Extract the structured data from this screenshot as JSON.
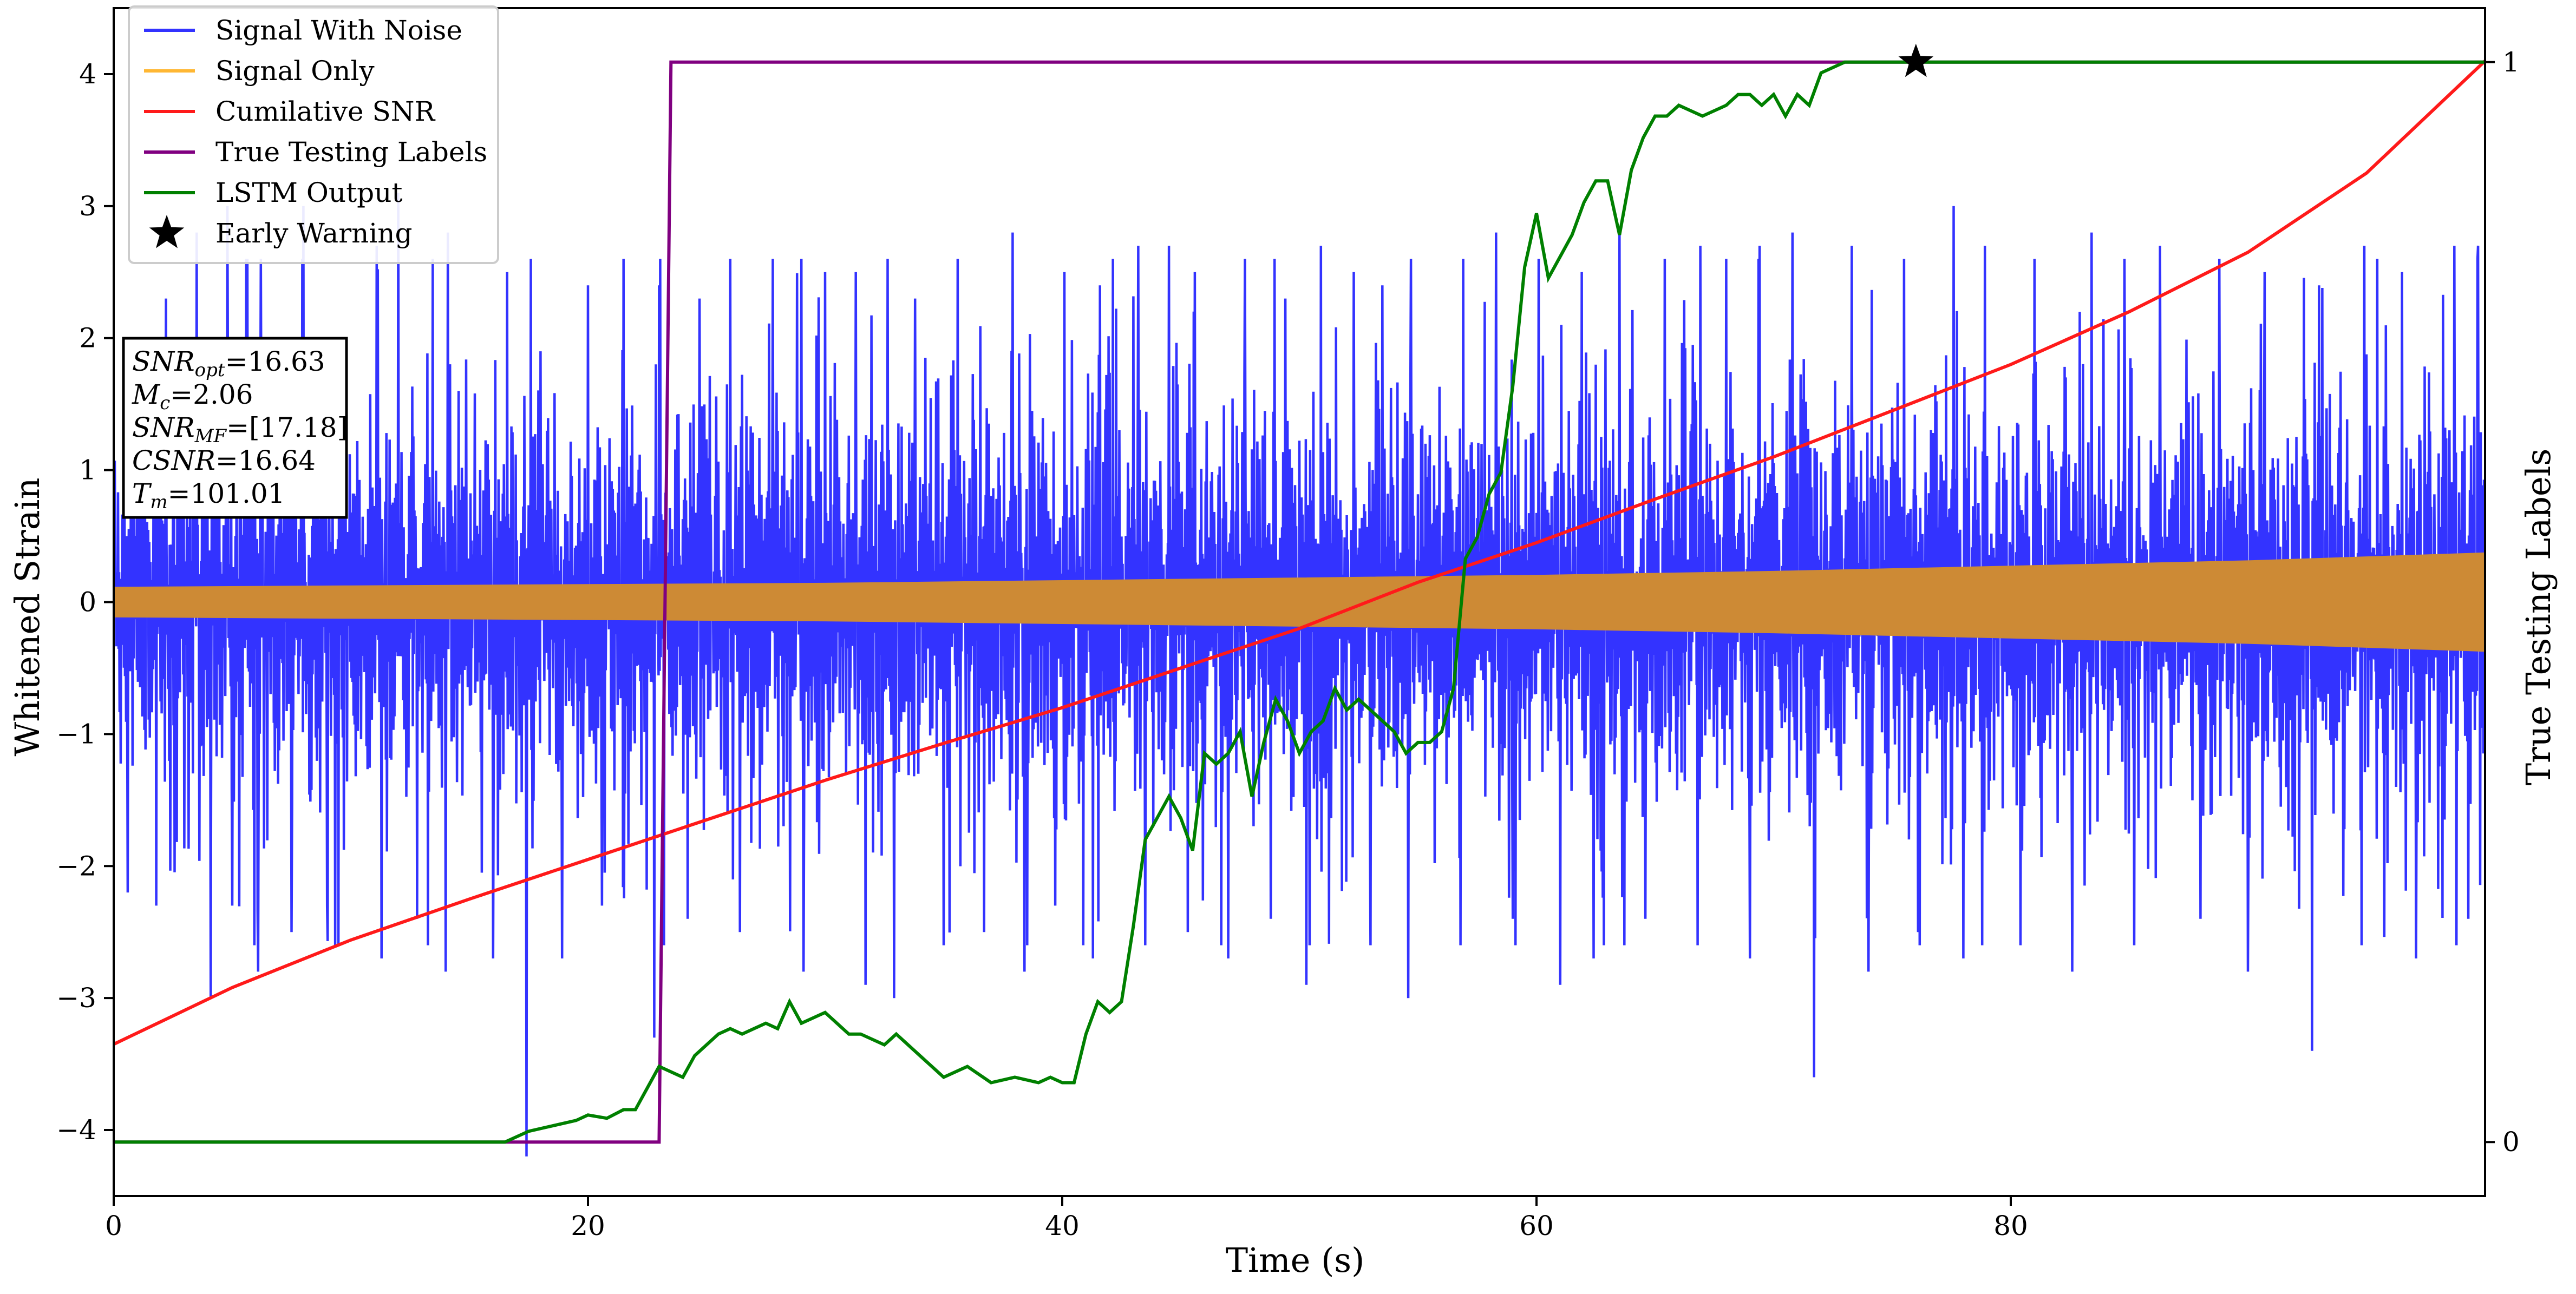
{
  "chart_data": {
    "type": "line",
    "title": "",
    "xlabel": "Time (s)",
    "ylabel": "Whitened Strain",
    "ylabel_right": "True Testing Labels",
    "xlim": [
      0,
      100
    ],
    "ylim": [
      -4.5,
      4.5
    ],
    "ylim_right": [
      -0.05,
      1.05
    ],
    "x_ticks": [
      0,
      20,
      40,
      60,
      80
    ],
    "y_ticks": [
      -4,
      -3,
      -2,
      -1,
      0,
      1,
      2,
      3,
      4
    ],
    "y_tick_labels": [
      "−4",
      "−3",
      "−2",
      "−1",
      "0",
      "1",
      "2",
      "3",
      "4"
    ],
    "y_right_ticks": [
      0,
      1
    ],
    "grid": false,
    "legend_position": "top-left",
    "legend": [
      {
        "label": "Signal With Noise",
        "color": "#3333ff",
        "marker": "line"
      },
      {
        "label": "Signal Only",
        "color": "#ffb733",
        "marker": "line"
      },
      {
        "label": "Cumilative SNR",
        "color": "#ff1a1a",
        "marker": "line"
      },
      {
        "label": "True Testing Labels",
        "color": "#800080",
        "marker": "line"
      },
      {
        "label": "LSTM Output",
        "color": "#008000",
        "marker": "line"
      },
      {
        "label": "Early Warning",
        "color": "#000000",
        "marker": "star"
      }
    ],
    "info_box": [
      {
        "main": "SNR",
        "sub": "opt",
        "value": "=16.63"
      },
      {
        "main": "M",
        "sub": "c",
        "value": "=2.06"
      },
      {
        "main": "SNR",
        "sub": "MF",
        "value": "=[17.18]"
      },
      {
        "main": "CSNR",
        "sub": "",
        "value": "=16.64"
      },
      {
        "main": "T",
        "sub": "m",
        "value": "=101.01"
      }
    ],
    "series": {
      "signal_with_noise": {
        "name": "Signal With Noise",
        "color": "#3333ff",
        "axis": "left",
        "description_mean": 0,
        "band_core": [
          -1.0,
          1.0
        ],
        "spikes_pos": [
          [
            1.0,
            1.9
          ],
          [
            2.2,
            2.3
          ],
          [
            3.5,
            2.8
          ],
          [
            4.8,
            3.0
          ],
          [
            6.2,
            2.6
          ],
          [
            8.0,
            3.0
          ],
          [
            11.1,
            2.7
          ],
          [
            12.0,
            3.1
          ],
          [
            14.1,
            2.8
          ],
          [
            16.6,
            2.5
          ],
          [
            17.6,
            2.6
          ],
          [
            18.0,
            1.9
          ],
          [
            20.0,
            2.4
          ],
          [
            21.5,
            2.6
          ],
          [
            23.0,
            2.4
          ],
          [
            24.7,
            2.3
          ],
          [
            26.0,
            2.6
          ],
          [
            27.8,
            2.6
          ],
          [
            30.0,
            2.5
          ],
          [
            31.3,
            2.5
          ],
          [
            33.8,
            2.3
          ],
          [
            35.6,
            2.6
          ],
          [
            37.9,
            2.8
          ],
          [
            40.1,
            2.5
          ],
          [
            41.6,
            2.4
          ],
          [
            43.2,
            2.7
          ],
          [
            44.5,
            2.7
          ],
          [
            45.6,
            2.5
          ],
          [
            47.7,
            2.6
          ],
          [
            49.4,
            2.3
          ],
          [
            50.9,
            2.7
          ],
          [
            52.3,
            2.5
          ],
          [
            53.5,
            2.4
          ],
          [
            54.7,
            2.6
          ],
          [
            56.9,
            2.6
          ],
          [
            58.3,
            2.8
          ],
          [
            60.1,
            2.6
          ],
          [
            61.9,
            2.5
          ],
          [
            63.5,
            2.8
          ],
          [
            65.4,
            2.6
          ],
          [
            66.9,
            2.7
          ],
          [
            68.0,
            2.6
          ],
          [
            69.4,
            2.7
          ],
          [
            70.8,
            2.8
          ],
          [
            73.3,
            2.7
          ],
          [
            75.5,
            2.6
          ],
          [
            77.6,
            3.0
          ],
          [
            78.9,
            2.7
          ],
          [
            81.0,
            2.6
          ],
          [
            83.4,
            2.8
          ],
          [
            84.8,
            2.6
          ],
          [
            86.3,
            2.7
          ],
          [
            88.8,
            2.6
          ],
          [
            90.7,
            2.5
          ],
          [
            93.0,
            2.4
          ],
          [
            94.9,
            2.7
          ],
          [
            96.5,
            2.5
          ],
          [
            98.7,
            2.7
          ],
          [
            99.7,
            2.7
          ]
        ],
        "spikes_neg": [
          [
            0.6,
            -2.2
          ],
          [
            1.8,
            -2.3
          ],
          [
            4.1,
            -3.0
          ],
          [
            5.0,
            -2.3
          ],
          [
            6.1,
            -2.8
          ],
          [
            7.5,
            -2.5
          ],
          [
            9.0,
            -2.3
          ],
          [
            11.3,
            -2.7
          ],
          [
            12.8,
            -2.4
          ],
          [
            14.0,
            -2.8
          ],
          [
            16.0,
            -2.7
          ],
          [
            17.4,
            -4.2
          ],
          [
            18.9,
            -2.7
          ],
          [
            20.6,
            -2.3
          ],
          [
            22.8,
            -3.3
          ],
          [
            24.2,
            -2.4
          ],
          [
            26.4,
            -2.5
          ],
          [
            29.1,
            -2.8
          ],
          [
            31.7,
            -2.9
          ],
          [
            32.9,
            -3.0
          ],
          [
            35.0,
            -2.6
          ],
          [
            36.7,
            -2.5
          ],
          [
            38.4,
            -2.8
          ],
          [
            39.7,
            -2.3
          ],
          [
            41.3,
            -2.7
          ],
          [
            43.5,
            -2.6
          ],
          [
            45.3,
            -2.5
          ],
          [
            47.0,
            -2.7
          ],
          [
            48.8,
            -2.4
          ],
          [
            50.3,
            -2.9
          ],
          [
            53.0,
            -2.6
          ],
          [
            54.6,
            -3.0
          ],
          [
            56.8,
            -2.6
          ],
          [
            59.0,
            -2.4
          ],
          [
            61.0,
            -2.9
          ],
          [
            62.4,
            -2.7
          ],
          [
            64.6,
            -2.4
          ],
          [
            66.8,
            -2.6
          ],
          [
            69.0,
            -2.7
          ],
          [
            71.7,
            -3.6
          ],
          [
            74.0,
            -2.8
          ],
          [
            76.1,
            -2.5
          ],
          [
            78.0,
            -2.7
          ],
          [
            80.4,
            -2.6
          ],
          [
            82.6,
            -2.8
          ],
          [
            85.2,
            -2.6
          ],
          [
            88.0,
            -2.4
          ],
          [
            90.0,
            -2.8
          ],
          [
            92.7,
            -3.4
          ],
          [
            94.8,
            -2.6
          ],
          [
            97.1,
            -2.7
          ],
          [
            99.3,
            -2.4
          ]
        ]
      },
      "signal_only": {
        "name": "Signal Only",
        "color": "#cd8a35",
        "axis": "left",
        "envelope": [
          [
            0,
            0.11
          ],
          [
            10,
            0.12
          ],
          [
            20,
            0.13
          ],
          [
            30,
            0.14
          ],
          [
            40,
            0.16
          ],
          [
            50,
            0.18
          ],
          [
            60,
            0.2
          ],
          [
            70,
            0.23
          ],
          [
            80,
            0.27
          ],
          [
            90,
            0.31
          ],
          [
            100,
            0.37
          ]
        ]
      },
      "cumulative_snr": {
        "name": "Cumilative SNR",
        "color": "#ff1a1a",
        "axis": "left",
        "x": [
          0,
          5,
          10,
          15,
          20,
          25,
          30,
          35,
          40,
          45,
          50,
          55,
          60,
          65,
          70,
          75,
          80,
          85,
          90,
          95,
          100
        ],
        "y": [
          -3.35,
          -2.92,
          -2.56,
          -2.25,
          -1.95,
          -1.65,
          -1.35,
          -1.07,
          -0.8,
          -0.5,
          -0.2,
          0.15,
          0.45,
          0.78,
          1.1,
          1.45,
          1.8,
          2.2,
          2.65,
          3.25,
          4.1
        ]
      },
      "true_testing_labels": {
        "name": "True Testing Labels",
        "color": "#800080",
        "axis": "right",
        "x": [
          0,
          23.0,
          23.5,
          100
        ],
        "y": [
          0,
          0,
          1,
          1
        ]
      },
      "lstm_output": {
        "name": "LSTM Output",
        "color": "#008000",
        "axis": "right",
        "x": [
          0,
          16.5,
          17.5,
          18.5,
          19.5,
          20.0,
          20.8,
          21.5,
          22.0,
          22.5,
          23.0,
          24.0,
          24.5,
          25.5,
          26.0,
          26.5,
          27.5,
          28.0,
          28.5,
          29.0,
          30.0,
          31.0,
          31.5,
          32.5,
          33.0,
          34.0,
          35.0,
          36.0,
          37.0,
          38.0,
          39.0,
          39.5,
          40.0,
          40.5,
          41.0,
          41.5,
          42.0,
          42.5,
          43.0,
          43.5,
          44.0,
          44.5,
          45.0,
          45.5,
          46.0,
          46.5,
          47.0,
          47.5,
          48.0,
          48.5,
          49.0,
          49.5,
          50.0,
          50.5,
          51.0,
          51.5,
          52.0,
          52.5,
          53.0,
          53.5,
          54.0,
          54.5,
          55.0,
          55.5,
          56.0,
          56.5,
          57.0,
          57.5,
          58.0,
          58.5,
          59.0,
          59.5,
          60.0,
          60.5,
          61.0,
          61.5,
          62.0,
          62.5,
          63.0,
          63.5,
          64.0,
          64.5,
          65.0,
          65.5,
          66.0,
          67.0,
          68.0,
          68.5,
          69.0,
          69.5,
          70.0,
          70.5,
          71.0,
          71.5,
          72.0,
          73.0,
          74.0,
          75.0,
          76.0,
          100
        ],
        "y": [
          0.0,
          0.0,
          0.01,
          0.015,
          0.02,
          0.025,
          0.022,
          0.03,
          0.03,
          0.05,
          0.07,
          0.06,
          0.08,
          0.1,
          0.105,
          0.1,
          0.11,
          0.105,
          0.13,
          0.11,
          0.12,
          0.1,
          0.1,
          0.09,
          0.1,
          0.08,
          0.06,
          0.07,
          0.055,
          0.06,
          0.055,
          0.06,
          0.055,
          0.055,
          0.1,
          0.13,
          0.12,
          0.13,
          0.2,
          0.28,
          0.3,
          0.32,
          0.3,
          0.27,
          0.36,
          0.35,
          0.36,
          0.38,
          0.32,
          0.37,
          0.41,
          0.39,
          0.36,
          0.38,
          0.39,
          0.42,
          0.4,
          0.41,
          0.4,
          0.39,
          0.38,
          0.36,
          0.37,
          0.37,
          0.38,
          0.42,
          0.54,
          0.56,
          0.6,
          0.62,
          0.7,
          0.81,
          0.86,
          0.8,
          0.82,
          0.84,
          0.87,
          0.89,
          0.89,
          0.84,
          0.9,
          0.93,
          0.95,
          0.95,
          0.96,
          0.95,
          0.96,
          0.97,
          0.97,
          0.96,
          0.97,
          0.95,
          0.97,
          0.96,
          0.99,
          1.0,
          1.0,
          1.0,
          1.0,
          1.0
        ]
      },
      "early_warning": {
        "name": "Early Warning",
        "color": "#000000",
        "axis": "right",
        "x": 76.0,
        "y": 1.0
      }
    }
  }
}
